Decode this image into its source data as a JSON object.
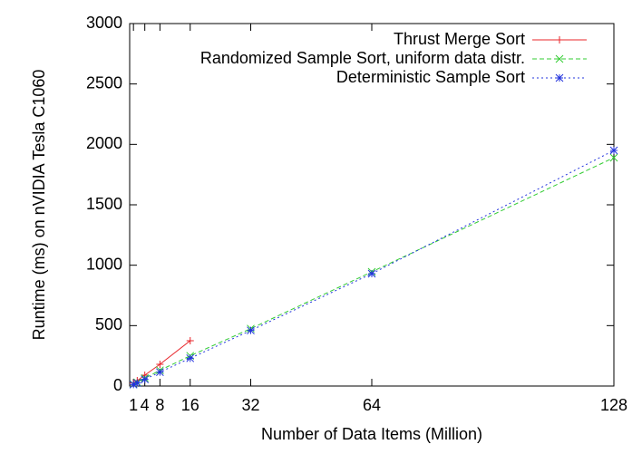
{
  "chart_data": {
    "type": "line",
    "x_label": "Number of Data Items (Million)",
    "y_label": "Runtime (ms) on nVIDIA Tesla C1060",
    "x": [
      1,
      2,
      4,
      8,
      16,
      32,
      64,
      128
    ],
    "series": [
      {
        "name": "Thrust Merge Sort",
        "color": "#e8252a",
        "marker": "plus",
        "line_style": "solid",
        "values": [
          25,
          45,
          90,
          180,
          375,
          null,
          null,
          null
        ]
      },
      {
        "name": "Randomized Sample Sort, uniform data distr.",
        "color": "#33cc33",
        "marker": "cross",
        "line_style": "dashed",
        "values": [
          15,
          30,
          65,
          130,
          250,
          475,
          945,
          1890
        ]
      },
      {
        "name": "Deterministic Sample Sort",
        "color": "#2233dd",
        "marker": "star",
        "line_style": "dotted",
        "values": [
          12,
          25,
          55,
          115,
          230,
          460,
          930,
          1950
        ]
      }
    ],
    "xlim": [
      0,
      128
    ],
    "xticks": [
      1,
      4,
      8,
      16,
      32,
      64,
      128
    ],
    "ylim": [
      0,
      3000
    ],
    "yticks": [
      0,
      500,
      1000,
      1500,
      2000,
      2500,
      3000
    ],
    "grid": false,
    "legend": "top-right"
  }
}
